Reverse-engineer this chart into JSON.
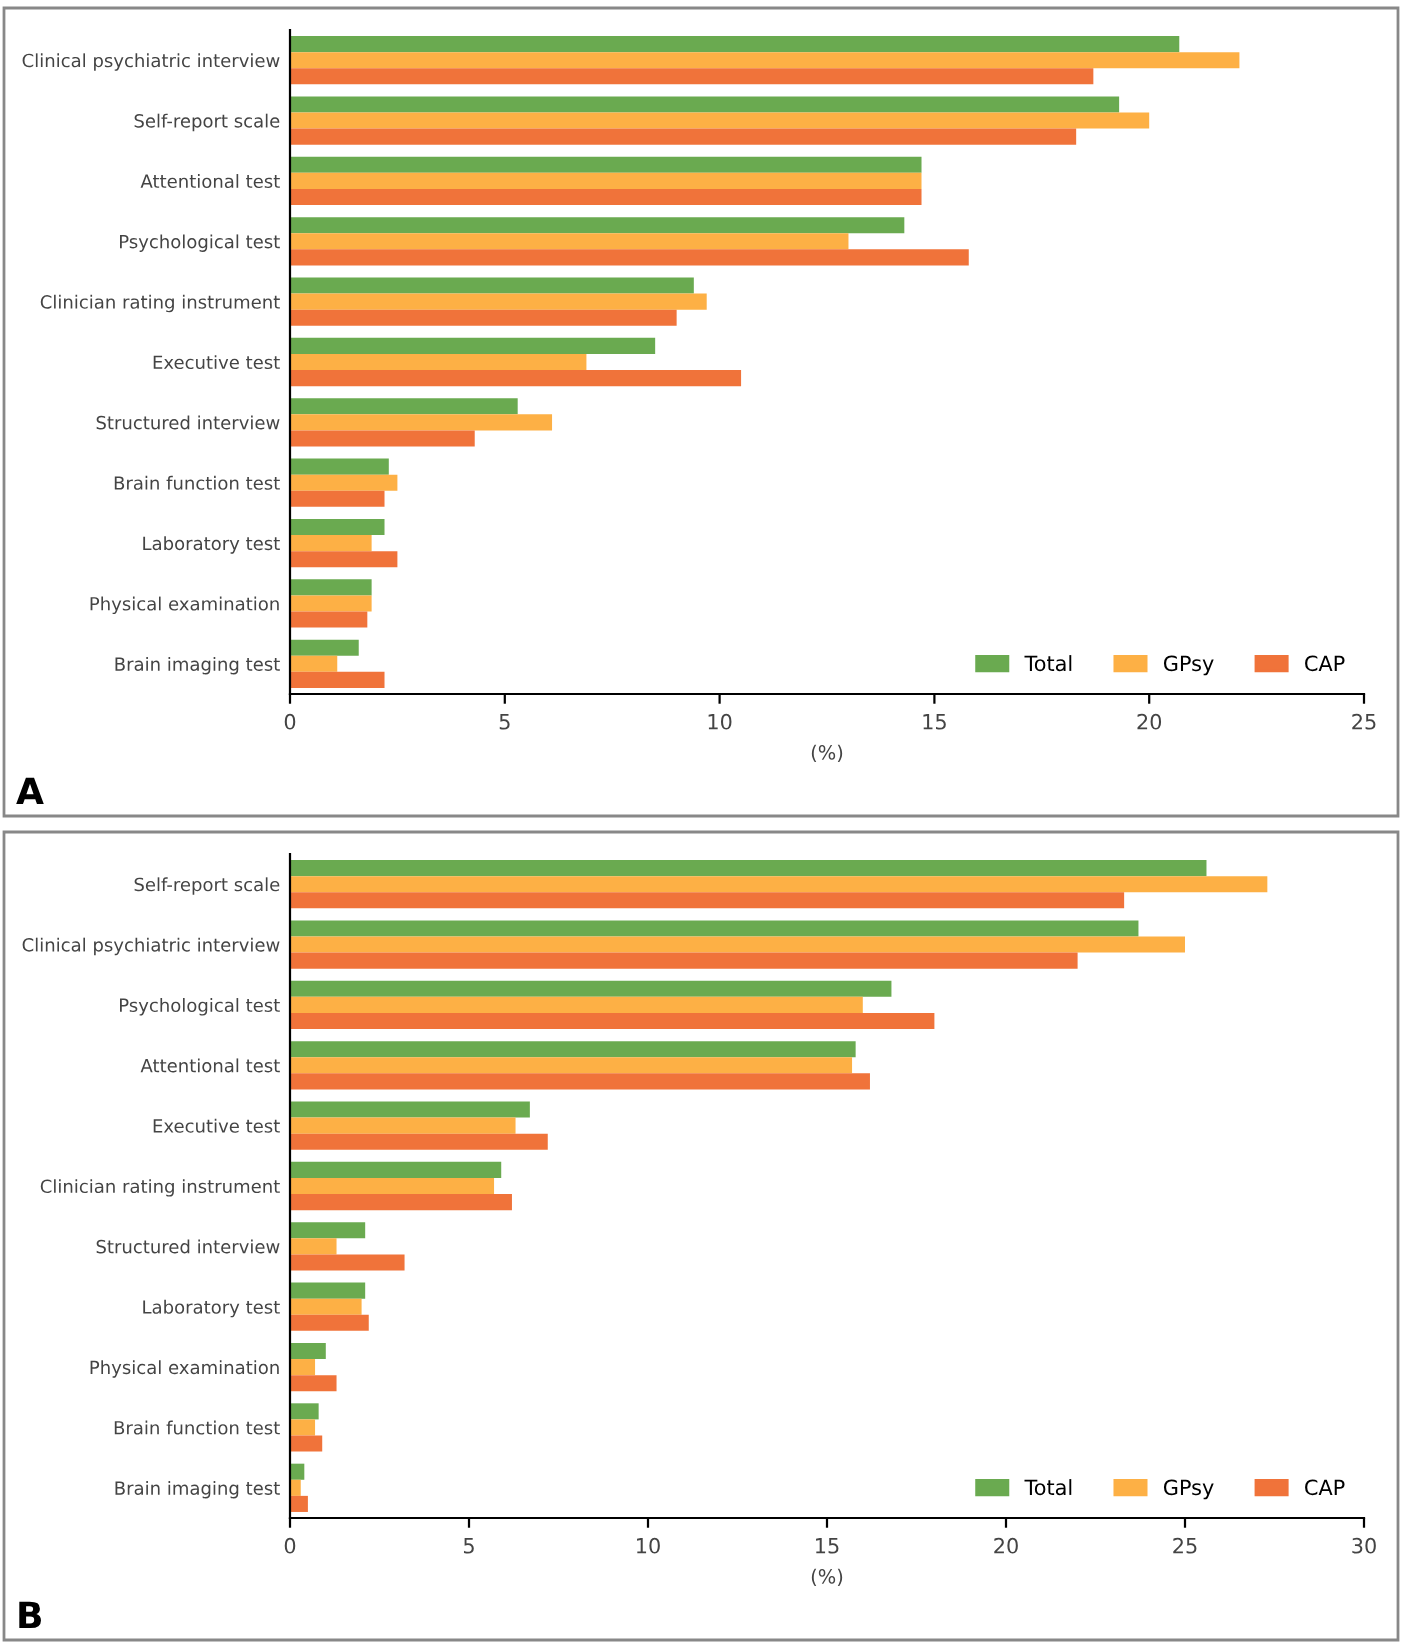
{
  "chart_data": [
    {
      "type": "bar",
      "orientation": "horizontal",
      "xlabel": "(%)",
      "annotations": [
        "A"
      ],
      "legend": "bottom right",
      "grid": false,
      "categories": [
        "Clinical psychiatric interview",
        "Self-report scale",
        "Attentional test",
        "Psychological test",
        "Clinician rating instrument",
        "Executive test",
        "Structured interview",
        "Brain function test",
        "Laboratory test",
        "Physical examination",
        "Brain imaging test"
      ],
      "xlim": [
        0,
        25
      ],
      "xticks": [
        0,
        5,
        10,
        15,
        20,
        25
      ],
      "series": [
        {
          "name": "Total",
          "color": "#6aaa50",
          "values": [
            20.7,
            19.3,
            14.7,
            14.3,
            9.4,
            8.5,
            5.3,
            2.3,
            2.2,
            1.9,
            1.6
          ]
        },
        {
          "name": "GPsy",
          "color": "#fdb045",
          "values": [
            22.1,
            20.0,
            14.7,
            13.0,
            9.7,
            6.9,
            6.1,
            2.5,
            1.9,
            1.9,
            1.1
          ]
        },
        {
          "name": "CAP",
          "color": "#f0733a",
          "values": [
            18.7,
            18.3,
            14.7,
            15.8,
            9.0,
            10.5,
            4.3,
            2.2,
            2.5,
            1.8,
            2.2
          ]
        }
      ]
    },
    {
      "type": "bar",
      "orientation": "horizontal",
      "xlabel": "(%)",
      "annotations": [
        "B"
      ],
      "legend": "bottom right",
      "grid": false,
      "categories": [
        "Self-report scale",
        "Clinical psychiatric interview",
        "Psychological test",
        "Attentional test",
        "Executive test",
        "Clinician rating instrument",
        "Structured interview",
        "Laboratory test",
        "Physical examination",
        "Brain function test",
        "Brain imaging test"
      ],
      "xlim": [
        0,
        30
      ],
      "xticks": [
        0,
        5,
        10,
        15,
        20,
        25,
        30
      ],
      "series": [
        {
          "name": "Total",
          "color": "#6aaa50",
          "values": [
            25.6,
            23.7,
            16.8,
            15.8,
            6.7,
            5.9,
            2.1,
            2.1,
            1.0,
            0.8,
            0.4
          ]
        },
        {
          "name": "GPsy",
          "color": "#fdb045",
          "values": [
            27.3,
            25.0,
            16.0,
            15.7,
            6.3,
            5.7,
            1.3,
            2.0,
            0.7,
            0.7,
            0.3
          ]
        },
        {
          "name": "CAP",
          "color": "#f0733a",
          "values": [
            23.3,
            22.0,
            18.0,
            16.2,
            7.2,
            6.2,
            3.2,
            2.2,
            1.3,
            0.9,
            0.5
          ]
        }
      ]
    }
  ]
}
